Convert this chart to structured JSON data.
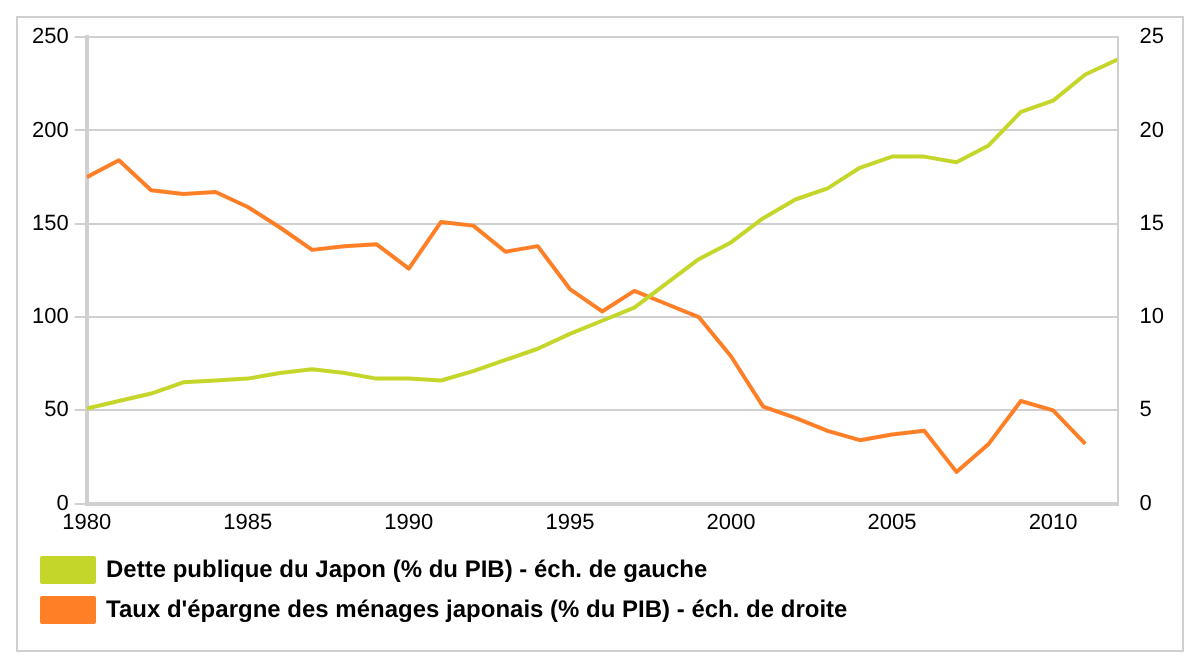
{
  "chart_data": {
    "type": "line",
    "x": [
      1980,
      1981,
      1982,
      1983,
      1984,
      1985,
      1986,
      1987,
      1988,
      1989,
      1990,
      1991,
      1992,
      1993,
      1994,
      1995,
      1996,
      1997,
      1998,
      1999,
      2000,
      2001,
      2002,
      2003,
      2004,
      2005,
      2006,
      2007,
      2008,
      2009,
      2010,
      2011,
      2012
    ],
    "series": [
      {
        "name": "Dette publique du Japon (% du PIB) - éch. de gauche",
        "color": "#c5d62b",
        "values": [
          51,
          55,
          59,
          65,
          66,
          67,
          70,
          72,
          70,
          67,
          67,
          66,
          71,
          77,
          83,
          91,
          98,
          105,
          118,
          131,
          140,
          153,
          163,
          169,
          180,
          186,
          186,
          183,
          192,
          210,
          216,
          230,
          238
        ]
      },
      {
        "name": "Taux d'épargne des ménages japonais (% du PIB) - éch. de droite",
        "color": "#ff7f27",
        "axis": "y2",
        "values": [
          17.5,
          18.4,
          16.8,
          16.6,
          16.7,
          15.9,
          14.8,
          13.6,
          13.8,
          13.9,
          12.6,
          15.1,
          14.9,
          13.5,
          13.8,
          11.5,
          10.3,
          11.4,
          10.7,
          10.0,
          7.9,
          5.2,
          4.6,
          3.9,
          3.4,
          3.7,
          3.9,
          1.7,
          3.2,
          5.5,
          5.0,
          3.2,
          null
        ]
      }
    ],
    "xlim": [
      1980,
      2012
    ],
    "xticks": [
      1980,
      1985,
      1990,
      1995,
      2000,
      2005,
      2010
    ],
    "ylim": [
      0,
      250
    ],
    "yticks": [
      0,
      50,
      100,
      150,
      200,
      250
    ],
    "y2lim": [
      0,
      25
    ],
    "y2ticks": [
      0,
      5,
      10,
      15,
      20,
      25
    ],
    "grid": "y",
    "legend": "bottom",
    "marker": "none",
    "line_style": "solid"
  }
}
